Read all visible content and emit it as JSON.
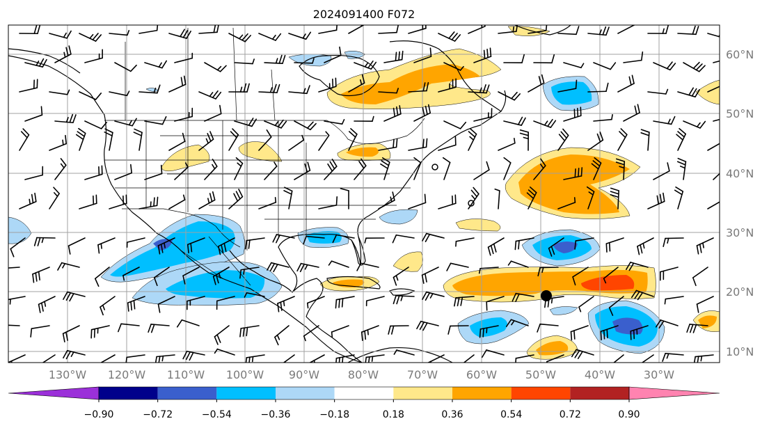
{
  "title": "2024091400 F072",
  "longitude_labels": [
    "130°W",
    "120°W",
    "110°W",
    "100°W",
    "90°W",
    "80°W",
    "70°W",
    "60°W",
    "50°W",
    "40°W",
    "30°W"
  ],
  "latitude_labels": [
    "60°N",
    "50°N",
    "40°N",
    "30°N",
    "20°N",
    "10°N"
  ],
  "colorbar": {
    "tick_labels": [
      "−0.90",
      "−0.72",
      "−0.54",
      "−0.36",
      "−0.18",
      "0.18",
      "0.36",
      "0.54",
      "0.72",
      "0.90"
    ],
    "colors": [
      "#9b30d9",
      "#00008b",
      "#3a5fcd",
      "#00bfff",
      "#add8f7",
      "#ffffff",
      "#ffe88a",
      "#ffa500",
      "#ff4500",
      "#b22222",
      "#ff83b0"
    ]
  },
  "map": {
    "projection": "plate-carree",
    "lon_range": [
      -141,
      -20
    ],
    "lat_range": [
      8,
      65
    ],
    "storm_marker": {
      "lon": -49,
      "lat": 19.3
    }
  }
}
